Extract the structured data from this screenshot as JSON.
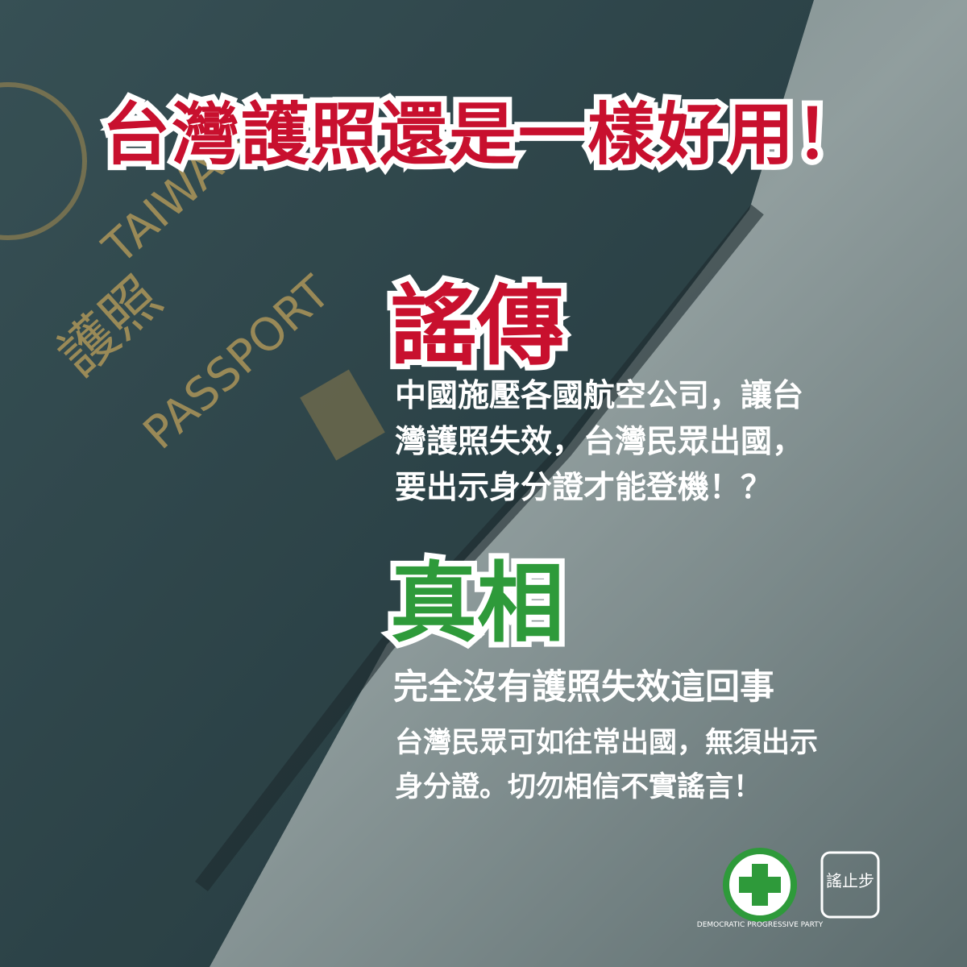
{
  "title": "台灣護照還是一樣好用！",
  "passport": {
    "country": "TAIWAN",
    "label": "PASSPORT",
    "chinese": "護照"
  },
  "rumor": {
    "heading": "謠傳",
    "lines": [
      "中國施壓各國航空公司，讓台",
      "灣護照失效，台灣民眾出國，",
      "要出示身分證才能登機！？"
    ]
  },
  "truth": {
    "heading": "真相",
    "subheading": "完全沒有護照失效這回事",
    "lines": [
      "台灣民眾可如往常出國，無須出示",
      "身分證。切勿相信不實謠言！"
    ]
  },
  "logos": {
    "party": "DEMOCRATIC PROGRESSIVE PARTY",
    "stop": "謠止步"
  }
}
